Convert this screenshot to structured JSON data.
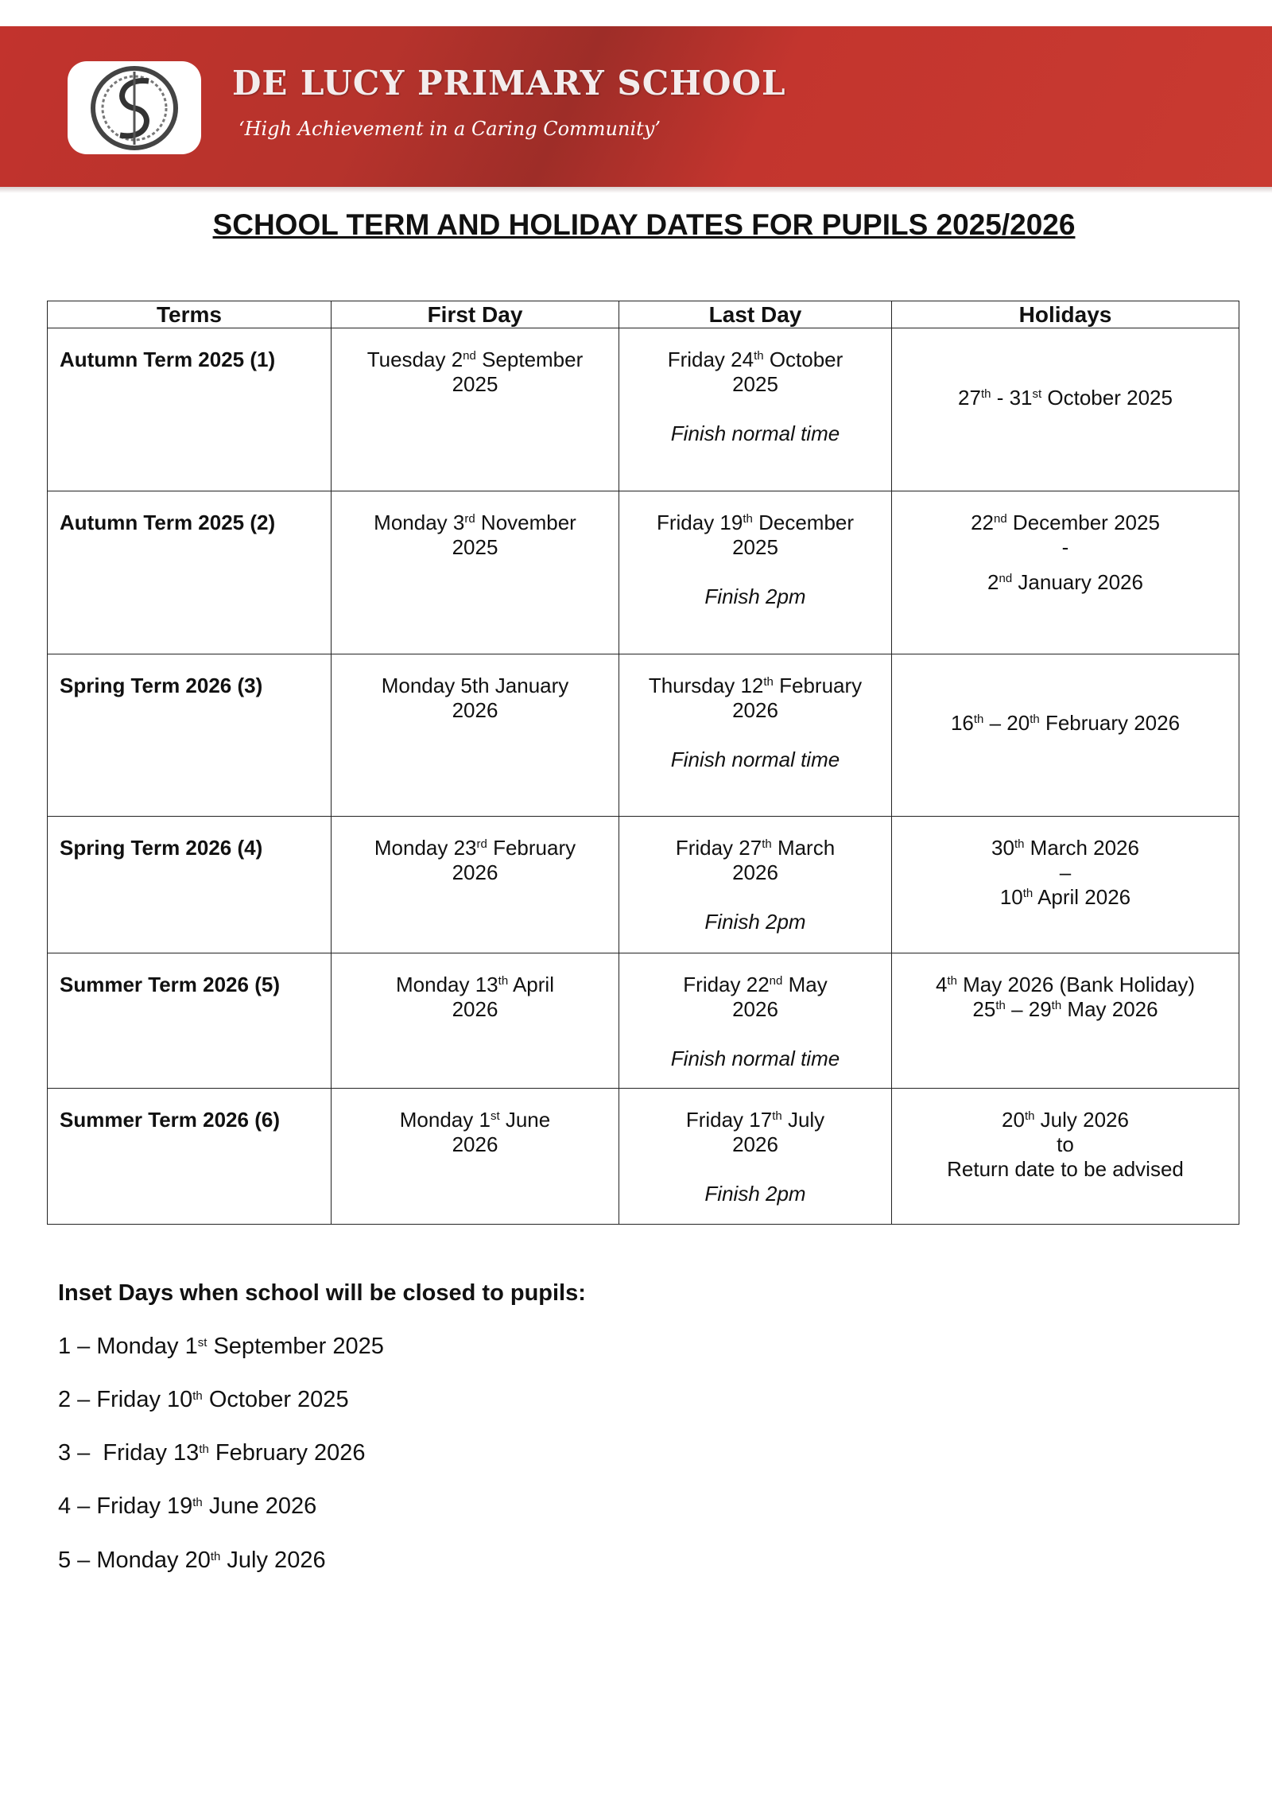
{
  "header": {
    "school_name": "DE LUCY PRIMARY SCHOOL",
    "motto": "‘High Achievement in a Caring Community’",
    "brand_color": "#c3352e"
  },
  "title": "SCHOOL TERM AND HOLIDAY DATES FOR PUPILS 2025/2026",
  "table": {
    "headers": [
      "Terms",
      "First Day",
      "Last Day",
      "Holidays"
    ],
    "rows": [
      {
        "term": "Autumn Term 2025 (1)",
        "first": [
          "Tuesday 2",
          "nd",
          " September",
          "2025"
        ],
        "last": [
          "Friday 24",
          "th",
          " October",
          "2025"
        ],
        "note": "Finish normal time",
        "holidays": "<27th - 31st October 2025>"
      },
      {
        "term": "Autumn Term 2025 (2)",
        "first": [
          "Monday 3",
          "rd",
          " November",
          "2025"
        ],
        "last": [
          "Friday 19",
          "th",
          " December",
          "2025"
        ],
        "note": "Finish 2pm",
        "holidays": ""
      },
      {
        "term": "Spring Term 2026 (3)",
        "first": [
          "Monday 5th January",
          "",
          "",
          "2026"
        ],
        "last": [
          "Thursday 12",
          "th",
          " February",
          "2026"
        ],
        "note": "Finish normal time",
        "holidays": ""
      },
      {
        "term": "Spring Term 2026 (4)",
        "first": [
          "Monday 23",
          "rd",
          " February",
          "2026"
        ],
        "last": [
          "Friday 27",
          "th",
          " March",
          "2026"
        ],
        "note": "Finish 2pm",
        "holidays": ""
      },
      {
        "term": "Summer Term 2026 (5)",
        "first": [
          "Monday 13",
          "th",
          " April",
          "2026"
        ],
        "last": [
          "Friday 22",
          "nd",
          " May",
          "2026"
        ],
        "note": "Finish normal time",
        "holidays": ""
      },
      {
        "term": "Summer Term 2026 (6)",
        "first": [
          "Monday 1",
          "st",
          " June",
          "2026"
        ],
        "last": [
          "Friday 17",
          "th",
          " July",
          "2026"
        ],
        "note": "Finish 2pm",
        "holidays": ""
      }
    ],
    "holiday_text": {
      "h1": [
        "27",
        "th",
        " - 31",
        "st",
        " October 2025"
      ],
      "h2": [
        "22",
        "nd",
        " December 2025",
        "-",
        "2",
        "nd",
        " January 2026"
      ],
      "h3": [
        "16",
        "th",
        " – 20",
        "th",
        " February 2026"
      ],
      "h4": [
        "30",
        "th",
        " March 2026",
        "–",
        "10",
        "th",
        " April 2026"
      ],
      "h5": [
        "4",
        "th",
        " May 2026 (Bank Holiday)",
        "25",
        "th",
        " – 29",
        "th",
        " May 2026"
      ],
      "h6": [
        "20",
        "th",
        " July 2026",
        "to",
        "Return date to be advised"
      ]
    }
  },
  "inset": {
    "title": "Inset Days when school will be closed to pupils:",
    "items": [
      [
        "1 – Monday 1",
        "st",
        " September 2025"
      ],
      [
        "2 – Friday 10",
        "th",
        " October 2025"
      ],
      [
        "3 –  Friday 13",
        "th",
        " February 2026"
      ],
      [
        "4 – Friday 19",
        "th",
        " June 2026"
      ],
      [
        "5 – Monday 20",
        "th",
        " July 2026"
      ]
    ]
  }
}
